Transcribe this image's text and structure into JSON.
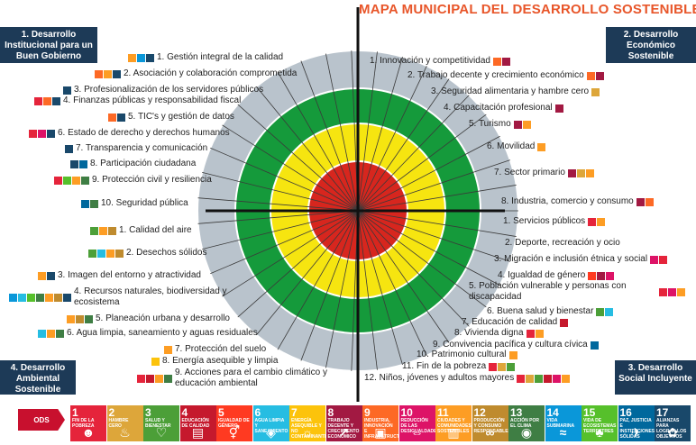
{
  "title": "MAPA MUNICIPAL DEL DESARROLLO SOSTENIBLE",
  "colors": {
    "ring1": "#d7261e",
    "ring2": "#f6e510",
    "ring3": "#159a3b",
    "ring4": "#b9c3cc",
    "navy": "#1d3a57"
  },
  "quadrants": {
    "tl": "1. Desarrollo Institucional para un Buen Gobierno",
    "tr": "2. Desarrollo Económico Sostenible",
    "bl": "4. Desarrollo Ambiental Sostenible",
    "br": "3. Desarrollo Social Incluyente"
  },
  "left_items": [
    {
      "text": "1. Gestión integral de la calidad",
      "chips": [
        "#fd9d24",
        "#0a97d9",
        "#19486a"
      ]
    },
    {
      "text": "2. Asociación y colaboración comprometida",
      "chips": [
        "#fd6925",
        "#fd9d24",
        "#19486a"
      ]
    },
    {
      "text": "3. Profesionalización de los servidores públicos",
      "chips": [
        "#19486a"
      ]
    },
    {
      "text": "4. Finanzas públicas y responsabilidad fiscal",
      "chips": [
        "#e5243b",
        "#fd6925",
        "#19486a"
      ]
    },
    {
      "text": "5. TIC's y gestión de datos",
      "chips": [
        "#fd6925",
        "#19486a"
      ]
    },
    {
      "text": "6. Estado de derecho y derechos humanos",
      "chips": [
        "#e5243b",
        "#dd1367",
        "#19486a"
      ]
    },
    {
      "text": "7. Transparencia y comunicación",
      "chips": [
        "#19486a"
      ]
    },
    {
      "text": "8. Participación ciudadana",
      "chips": [
        "#19486a",
        "#00689d"
      ]
    },
    {
      "text": "9. Protección civil y resiliencia",
      "chips": [
        "#e5243b",
        "#56c02b",
        "#fd9d24",
        "#3f7e44"
      ]
    },
    {
      "text": "10. Seguridad pública",
      "chips": [
        "#00689d",
        "#3f7e44"
      ]
    },
    {
      "text": "1. Calidad del aire",
      "chips": [
        "#4c9f38",
        "#fd9d24",
        "#bf8b2e"
      ]
    },
    {
      "text": "2. Desechos sólidos",
      "chips": [
        "#4c9f38",
        "#26bde2",
        "#fd9d24",
        "#bf8b2e"
      ]
    },
    {
      "text": "3. Imagen del entorno y atractividad",
      "chips": [
        "#fd9d24",
        "#19486a"
      ]
    },
    {
      "text": "4. Recursos naturales, biodiversidad y ecosistema",
      "chips": [
        "#0a97d9",
        "#26bde2",
        "#56c02b",
        "#3f7e44",
        "#fd9d24",
        "#bf8b2e",
        "#19486a"
      ]
    },
    {
      "text": "5. Planeación urbana y desarrollo",
      "chips": [
        "#fd9d24",
        "#bf8b2e",
        "#3f7e44"
      ]
    },
    {
      "text": "6. Agua limpia, saneamiento y aguas residuales",
      "chips": [
        "#26bde2",
        "#fd9d24",
        "#3f7e44"
      ]
    },
    {
      "text": "7. Protección del suelo",
      "chips": [
        "#fd9d24"
      ]
    },
    {
      "text": "8. Energía asequible y limpia",
      "chips": [
        "#fcc30b"
      ]
    },
    {
      "text": "9. Acciones para el cambio climático y educación ambiental",
      "chips": [
        "#e5243b",
        "#c5192d",
        "#fd9d24",
        "#3f7e44"
      ]
    }
  ],
  "right_items": [
    {
      "text": "1. Innovación y competitividad",
      "chips": [
        "#fd6925",
        "#a21942"
      ]
    },
    {
      "text": "2. Trabajo decente y crecimiento económico",
      "chips": [
        "#fd6925",
        "#a21942"
      ]
    },
    {
      "text": "3. Seguridad alimentaria y hambre cero",
      "chips": [
        "#dda63a"
      ]
    },
    {
      "text": "4. Capacitación profesional",
      "chips": [
        "#a21942"
      ]
    },
    {
      "text": "5. Turismo",
      "chips": [
        "#a21942",
        "#fd9d24"
      ]
    },
    {
      "text": "6. Movilidad",
      "chips": [
        "#fd9d24"
      ]
    },
    {
      "text": "7. Sector primario",
      "chips": [
        "#a21942",
        "#dda63a",
        "#fd9d24"
      ]
    },
    {
      "text": "8. Industria, comercio y consumo",
      "chips": [
        "#a21942",
        "#fd6925"
      ]
    },
    {
      "text": "1. Servicios públicos",
      "chips": [
        "#e5243b",
        "#fd9d24"
      ]
    },
    {
      "text": "2. Deporte, recreación y ocio",
      "chips": []
    },
    {
      "text": "3. Migración e inclusión étnica y social",
      "chips": [
        "#dd1367",
        "#e5243b"
      ]
    },
    {
      "text": "4. Igualdad de género",
      "chips": [
        "#ff3a21",
        "#a21942",
        "#dd1367"
      ]
    },
    {
      "text": "5. Población vulnerable y personas con discapacidad",
      "chips": [
        "#e5243b",
        "#dd1367",
        "#fd9d24"
      ]
    },
    {
      "text": "6. Buena salud y bienestar",
      "chips": [
        "#4c9f38",
        "#26bde2"
      ]
    },
    {
      "text": "7. Educación de calidad",
      "chips": [
        "#c5192d"
      ]
    },
    {
      "text": "8. Vivienda digna",
      "chips": [
        "#e5243b",
        "#fd9d24"
      ]
    },
    {
      "text": "9. Convivencia pacífica y cultura cívica",
      "chips": [
        "#00689d"
      ]
    },
    {
      "text": "10. Patrimonio cultural",
      "chips": [
        "#fd9d24"
      ]
    },
    {
      "text": "11. Fin de la pobreza",
      "chips": [
        "#e5243b",
        "#dda63a",
        "#4c9f38"
      ]
    },
    {
      "text": "12. Niños, jóvenes y adultos mayores",
      "chips": [
        "#e5243b",
        "#dda63a",
        "#4c9f38",
        "#c5192d",
        "#dd1367",
        "#fd9d24"
      ]
    }
  ],
  "ods_label": "ODS",
  "sdgs": [
    {
      "num": "1",
      "label": "FIN DE LA POBREZA",
      "color": "#e5243b",
      "glyph": "☻"
    },
    {
      "num": "2",
      "label": "HAMBRE CERO",
      "color": "#dda63a",
      "glyph": "♨"
    },
    {
      "num": "3",
      "label": "SALUD Y BIENESTAR",
      "color": "#4c9f38",
      "glyph": "♡"
    },
    {
      "num": "4",
      "label": "EDUCACIÓN DE CALIDAD",
      "color": "#c5192d",
      "glyph": "▤"
    },
    {
      "num": "5",
      "label": "IGUALDAD DE GÉNERO",
      "color": "#ff3a21",
      "glyph": "⚥"
    },
    {
      "num": "6",
      "label": "AGUA LIMPIA Y SANEAMIENTO",
      "color": "#26bde2",
      "glyph": "◈"
    },
    {
      "num": "7",
      "label": "ENERGÍA ASEQUIBLE Y NO CONTAMINANTE",
      "color": "#fcc30b",
      "glyph": "☼"
    },
    {
      "num": "8",
      "label": "TRABAJO DECENTE Y CRECIMIENTO ECONÓMICO",
      "color": "#a21942",
      "glyph": "↗"
    },
    {
      "num": "9",
      "label": "INDUSTRIA, INNOVACIÓN E INFRAESTRUCTURA",
      "color": "#fd6925",
      "glyph": "▣"
    },
    {
      "num": "10",
      "label": "REDUCCIÓN DE LAS DESIGUALDADES",
      "color": "#dd1367",
      "glyph": "⇔"
    },
    {
      "num": "11",
      "label": "CIUDADES Y COMUNIDADES SOSTENIBLES",
      "color": "#fd9d24",
      "glyph": "▥"
    },
    {
      "num": "12",
      "label": "PRODUCCIÓN Y CONSUMO RESPONSABLES",
      "color": "#bf8b2e",
      "glyph": "∞"
    },
    {
      "num": "13",
      "label": "ACCIÓN POR EL CLIMA",
      "color": "#3f7e44",
      "glyph": "◉"
    },
    {
      "num": "14",
      "label": "VIDA SUBMARINA",
      "color": "#0a97d9",
      "glyph": "≈"
    },
    {
      "num": "15",
      "label": "VIDA DE ECOSISTEMAS TERRESTRES",
      "color": "#56c02b",
      "glyph": "♣"
    },
    {
      "num": "16",
      "label": "PAZ, JUSTICIA E INSTITUCIONES SÓLIDAS",
      "color": "#00689d",
      "glyph": "✈"
    },
    {
      "num": "17",
      "label": "ALIANZAS PARA LOGRAR LOS OBJETIVOS",
      "color": "#19486a",
      "glyph": "✿"
    }
  ]
}
